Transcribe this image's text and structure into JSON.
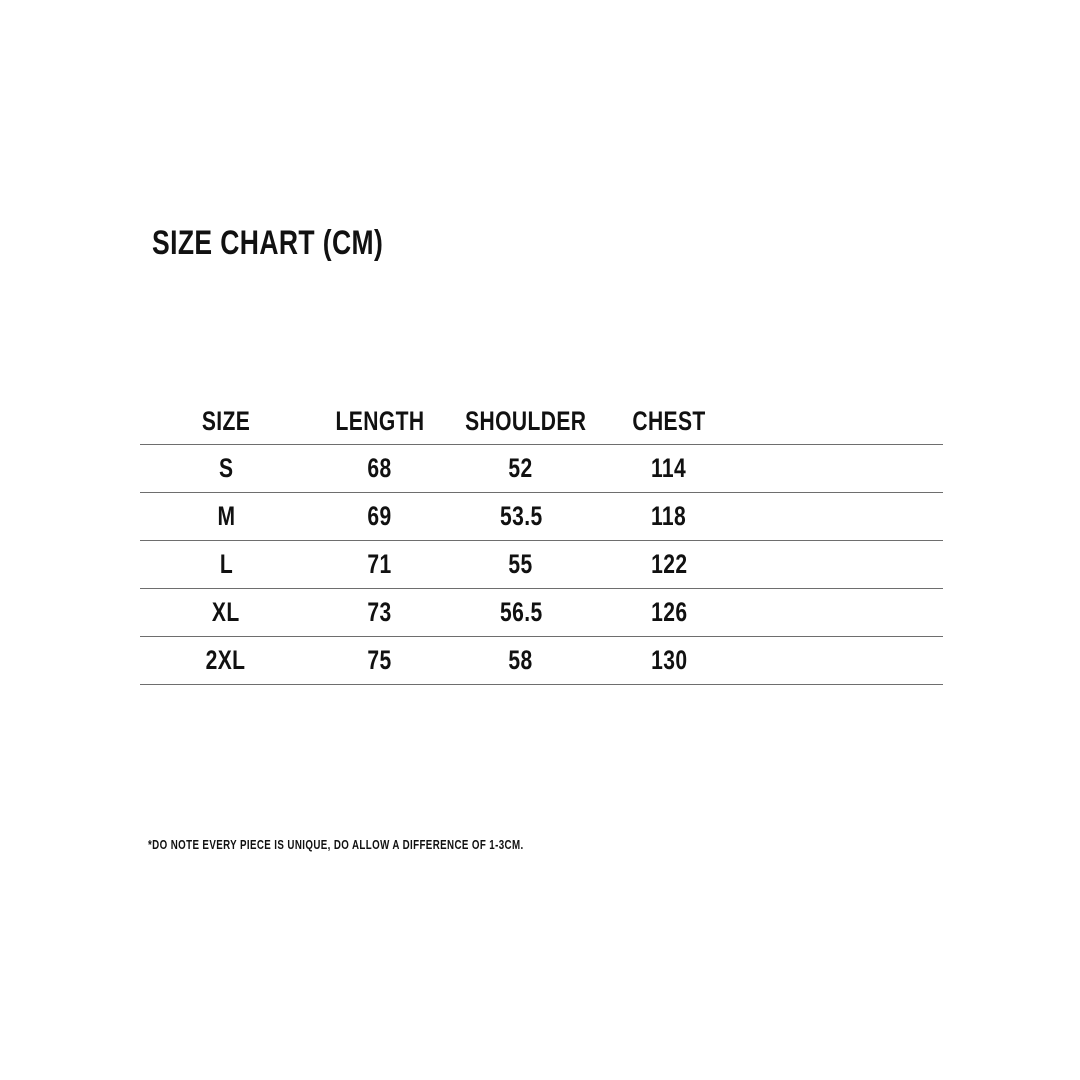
{
  "page": {
    "title": "SIZE CHART (CM)",
    "footnote": "*DO NOTE EVERY PIECE IS UNIQUE, DO ALLOW A DIFFERENCE OF 1-3CM."
  },
  "colors": {
    "background": "#ffffff",
    "text": "#111111",
    "table_line": "#6e6e6e"
  },
  "chart_data": {
    "type": "table",
    "title": "SIZE CHART (CM)",
    "unit": "CM",
    "columns": [
      "SIZE",
      "LENGTH",
      "SHOULDER",
      "CHEST"
    ],
    "rows": [
      {
        "size": "S",
        "length": "68",
        "shoulder": "52",
        "chest": "114"
      },
      {
        "size": "M",
        "length": "69",
        "shoulder": "53.5",
        "chest": "118"
      },
      {
        "size": "L",
        "length": "71",
        "shoulder": "55",
        "chest": "122"
      },
      {
        "size": "XL",
        "length": "73",
        "shoulder": "56.5",
        "chest": "126"
      },
      {
        "size": "2XL",
        "length": "75",
        "shoulder": "58",
        "chest": "130"
      }
    ],
    "notes": "*DO NOTE EVERY PIECE IS UNIQUE, DO ALLOW A DIFFERENCE OF 1-3CM.",
    "layout": {
      "grid": "horizontal-rules-only",
      "header_style": "bold-uppercase"
    }
  }
}
